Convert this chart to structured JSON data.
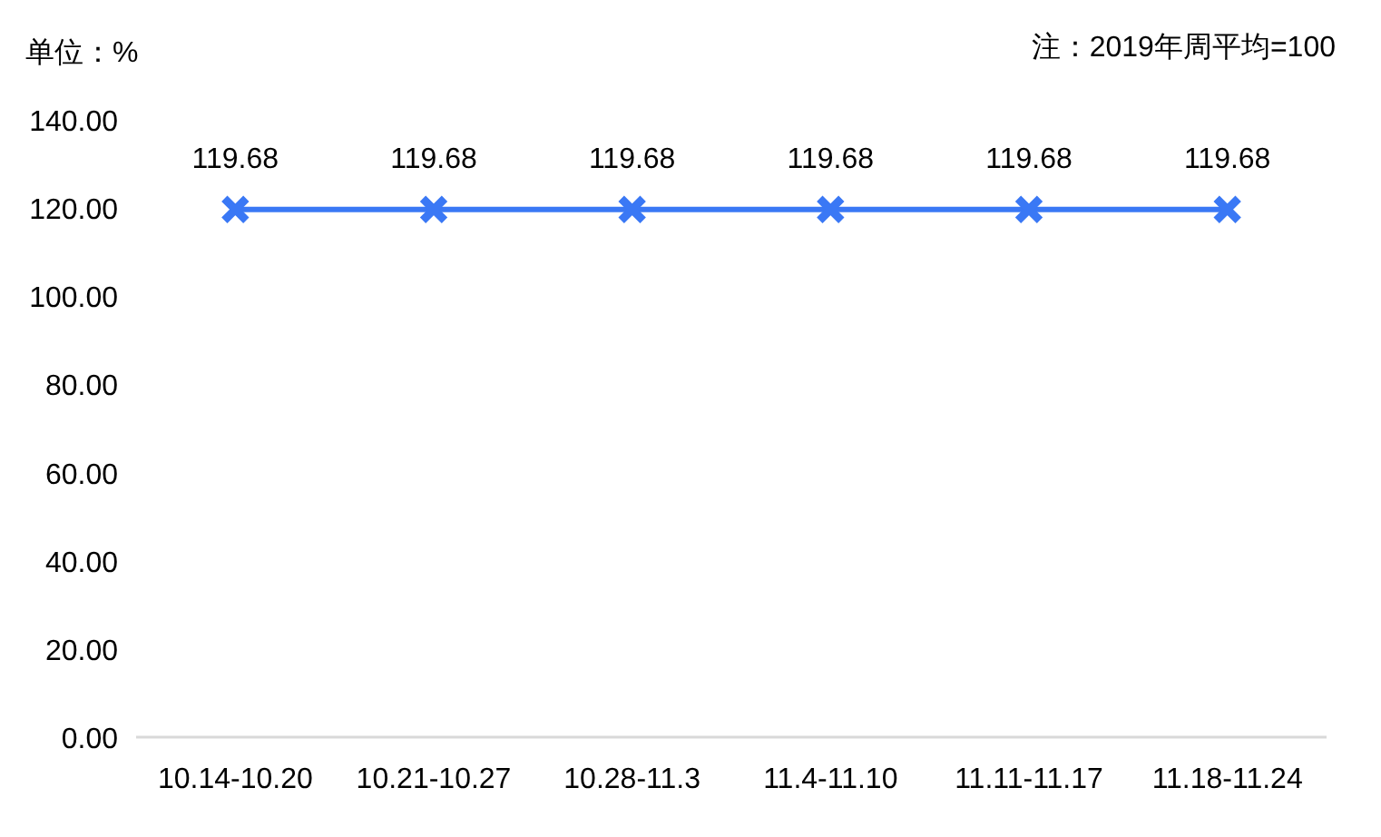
{
  "chart_data": {
    "type": "line",
    "ylabel": "单位：%",
    "annotations": [
      "注：2019年周平均=100"
    ],
    "categories": [
      "10.14-10.20",
      "10.21-10.27",
      "10.28-11.3",
      "11.4-11.10",
      "11.11-11.17",
      "11.18-11.24"
    ],
    "series": [
      {
        "color": "#3a78f5",
        "values": [
          119.68,
          119.68,
          119.68,
          119.68,
          119.68,
          119.68
        ]
      }
    ],
    "ylim": [
      0,
      140
    ],
    "yticks": [
      {
        "value": 0,
        "label": "0.00"
      },
      {
        "value": 20,
        "label": "20.00"
      },
      {
        "value": 40,
        "label": "40.00"
      },
      {
        "value": 60,
        "label": "60.00"
      },
      {
        "value": 80,
        "label": "80.00"
      },
      {
        "value": 100,
        "label": "100.00"
      },
      {
        "value": 120,
        "label": "120.00"
      },
      {
        "value": 140,
        "label": "140.00"
      }
    ],
    "data_labels": true,
    "marker": "cross",
    "line_style": "solid"
  }
}
